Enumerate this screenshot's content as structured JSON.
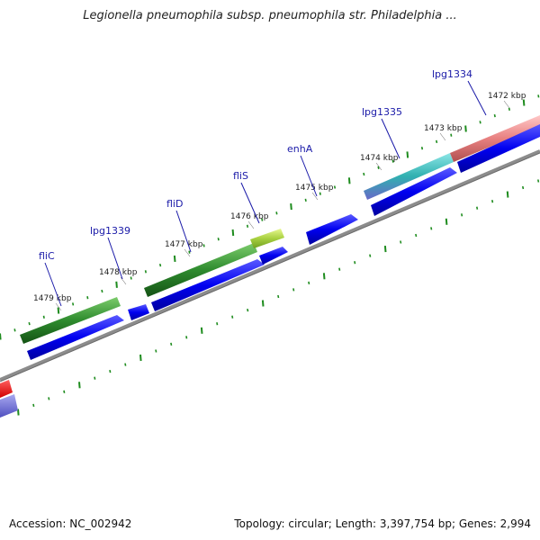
{
  "title": "Legionella pneumophila subsp. pneumophila str. Philadelphia ...",
  "footer": {
    "accession": "Accession: NC_002942",
    "info": "Topology: circular; Length: 3,397,754 bp; Genes: 2,994"
  },
  "ticks": [
    "1472 kbp",
    "1473 kbp",
    "1474 kbp",
    "1475 kbp",
    "1476 kbp",
    "1477 kbp",
    "1478 kbp",
    "1479 kbp"
  ],
  "genes": [
    "lpg1334",
    "lpg1335",
    "enhA",
    "fliS",
    "fliD",
    "lpg1339",
    "fliC"
  ],
  "colors": {
    "gene_label": "#1a1aa8",
    "forward_strand": "#0000ff",
    "cds_green": "#2e8b2e",
    "cds_pink": "#e88080",
    "cds_teal": "#30b0b0",
    "cds_lime": "#a8d040",
    "backbone": "#8c8c8c",
    "dots": "#1e8c1e"
  }
}
